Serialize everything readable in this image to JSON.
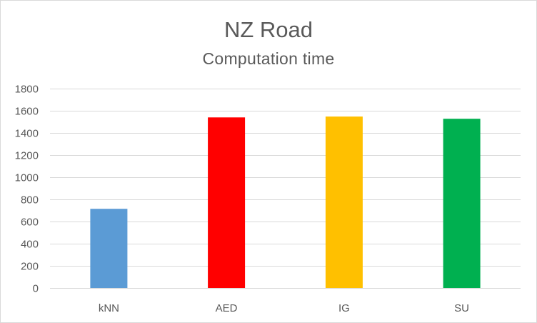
{
  "chart_data": {
    "type": "bar",
    "title": "NZ Road",
    "subtitle": "Computation time",
    "categories": [
      "kNN",
      "AED",
      "IG",
      "SU"
    ],
    "values": [
      715,
      1540,
      1548,
      1528
    ],
    "colors": [
      "#5b9bd5",
      "#ff0000",
      "#ffc000",
      "#00b050"
    ],
    "ylim": [
      0,
      1800
    ],
    "yticks": [
      0,
      200,
      400,
      600,
      800,
      1000,
      1200,
      1400,
      1600,
      1800
    ],
    "grid": true,
    "legend": "none",
    "xlabel": "",
    "ylabel": ""
  }
}
